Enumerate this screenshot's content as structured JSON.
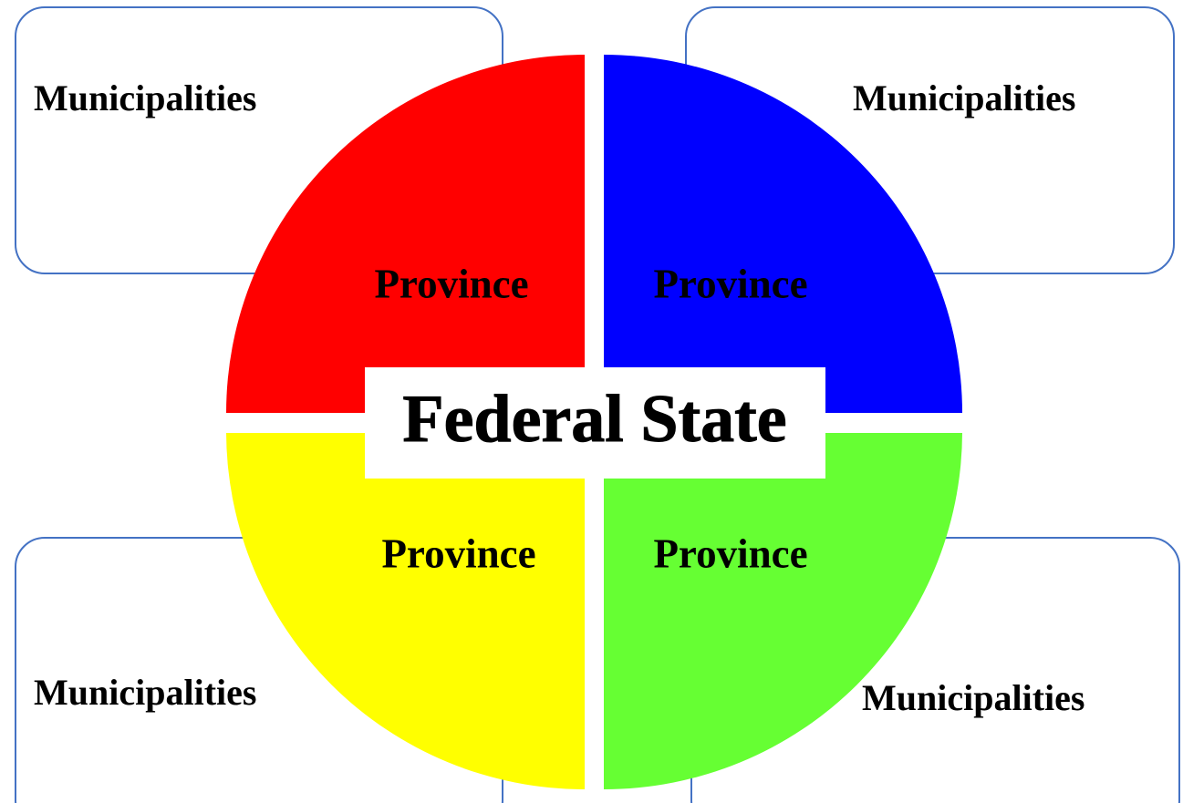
{
  "center": {
    "label": "Federal State"
  },
  "provinces": [
    {
      "label": "Province"
    },
    {
      "label": "Province"
    },
    {
      "label": "Province"
    },
    {
      "label": "Province"
    }
  ],
  "municipalities": [
    {
      "label": "Municipalities"
    },
    {
      "label": "Municipalities"
    },
    {
      "label": "Municipalities"
    },
    {
      "label": "Municipalities"
    }
  ]
}
